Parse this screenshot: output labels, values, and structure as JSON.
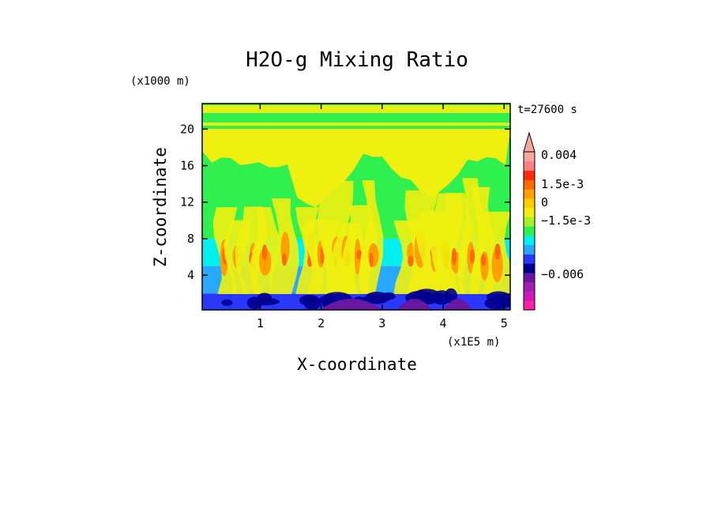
{
  "chart_data": {
    "type": "heatmap",
    "title": "H2O-g Mixing Ratio",
    "xlabel": "X-coordinate",
    "ylabel": "Z-coordinate",
    "x_unit_note": "(x1E5 m)",
    "y_unit_note": "(x1000 m)",
    "time_label": "t=27600 s",
    "xlim": [
      0.05,
      5.1
    ],
    "ylim": [
      0.2,
      22.8
    ],
    "x_ticks": [
      1,
      2,
      3,
      4,
      5
    ],
    "x_tick_labels": [
      "1",
      "2",
      "3",
      "4",
      "5"
    ],
    "y_ticks": [
      4,
      8,
      12,
      16,
      20
    ],
    "y_tick_labels": [
      "4",
      "8",
      "12",
      "16",
      "20"
    ],
    "colorbar": {
      "colors": [
        "#ff1fa5",
        "#d11ab5",
        "#a020b4",
        "#6a16a4",
        "#000090",
        "#2a38ff",
        "#28a8ff",
        "#00f0f0",
        "#30f050",
        "#a8f028",
        "#f0f010",
        "#ffcc00",
        "#ffa000",
        "#ff6a00",
        "#ff2a10",
        "#ff8080",
        "#f5a8a0"
      ],
      "labels": [
        {
          "text": "0.004",
          "value": 0.004
        },
        {
          "text": "1.5e-3",
          "value": 0.0015
        },
        {
          "text": "0",
          "value": 0
        },
        {
          "text": "−1.5e-3",
          "value": -0.0015
        },
        {
          "text": "−0.006",
          "value": -0.006
        }
      ],
      "extend": "max"
    },
    "field_bands": [
      {
        "z_min": 0.2,
        "z_max": 2.0,
        "color": "#2a38ff"
      },
      {
        "z_min": 2.0,
        "z_max": 5.0,
        "color": "#28a8ff"
      },
      {
        "z_min": 5.0,
        "z_max": 8.0,
        "color": "#00f0f0"
      },
      {
        "z_min": 8.0,
        "z_max": 20.5,
        "color": "#30f050"
      },
      {
        "z_min": 20.5,
        "z_max": 22.8,
        "color": "#30f050"
      }
    ]
  }
}
